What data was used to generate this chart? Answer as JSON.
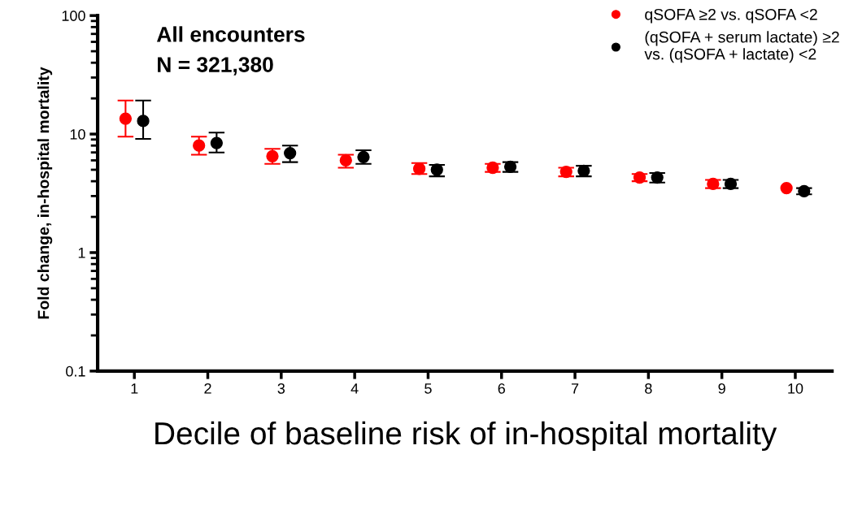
{
  "chart_data": {
    "type": "scatter",
    "ylabel": "Fold change, in-hospital mortality",
    "xlabel": "Decile of baseline risk of in-hospital mortality",
    "annotations": [
      "All encounters",
      "N = 321,380"
    ],
    "log": "y",
    "xlim": [
      0.5,
      10.5
    ],
    "xticks": [
      1,
      2,
      3,
      4,
      5,
      6,
      7,
      8,
      9,
      10
    ],
    "ylim": [
      0.1,
      100
    ],
    "yticks": [
      0.1,
      1,
      10,
      100
    ],
    "grid": false,
    "legend": "top right",
    "marker": "circle",
    "line_style": "none",
    "series": [
      {
        "name": "qSOFA ≥2 vs. qSOFA <2",
        "color": "#ff0000",
        "x": [
          0.88,
          1.88,
          2.88,
          3.88,
          4.88,
          5.88,
          6.88,
          7.88,
          8.88,
          9.88
        ],
        "values": [
          13.5,
          8.0,
          6.5,
          6.0,
          5.1,
          5.2,
          4.8,
          4.3,
          3.8,
          3.5
        ],
        "errors": [
          [
            9.5,
            19.2
          ],
          [
            6.7,
            9.5
          ],
          [
            5.6,
            7.5
          ],
          [
            5.2,
            6.7
          ],
          [
            4.6,
            5.7
          ],
          [
            4.8,
            5.6
          ],
          [
            4.4,
            5.2
          ],
          [
            4.0,
            4.6
          ],
          [
            3.5,
            4.1
          ],
          null
        ]
      },
      {
        "name": "(qSOFA + serum lactate) ≥2\nvs. (qSOFA + lactate) <2",
        "color": "#000000",
        "x": [
          1.12,
          2.12,
          3.12,
          4.12,
          5.12,
          6.12,
          7.12,
          8.12,
          9.12,
          10.12
        ],
        "values": [
          12.9,
          8.4,
          6.9,
          6.4,
          5.0,
          5.3,
          4.9,
          4.3,
          3.8,
          3.3
        ],
        "errors": [
          [
            9.1,
            19.2
          ],
          [
            7.0,
            10.3
          ],
          [
            5.8,
            8.0
          ],
          [
            5.6,
            7.3
          ],
          [
            4.4,
            5.5
          ],
          [
            4.8,
            5.8
          ],
          [
            4.4,
            5.4
          ],
          [
            3.9,
            4.7
          ],
          [
            3.5,
            4.1
          ],
          [
            3.1,
            3.5
          ]
        ]
      }
    ]
  }
}
